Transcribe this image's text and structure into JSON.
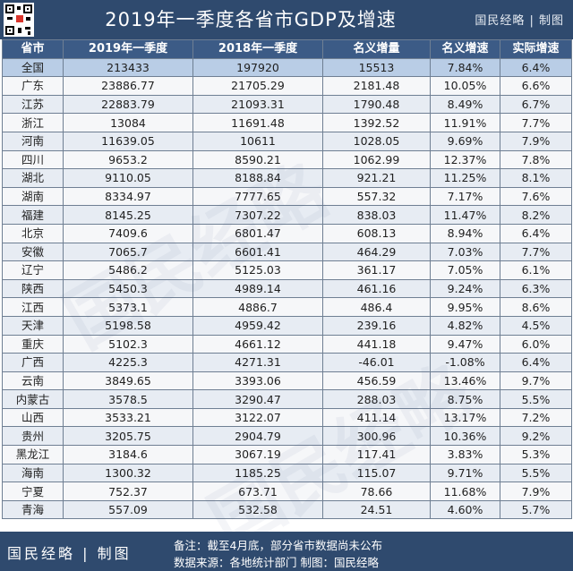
{
  "header": {
    "title": "2019年一季度各省市GDP及增速",
    "brand": "国民经略 | 制图"
  },
  "chart_data": {
    "type": "table",
    "title": "2019年一季度各省市GDP及增速",
    "columns": [
      "省市",
      "2019年一季度",
      "2018年一季度",
      "名义增量",
      "名义增速",
      "实际增速"
    ],
    "rows": [
      [
        "全国",
        "213433",
        "197920",
        "15513",
        "7.84%",
        "6.4%"
      ],
      [
        "广东",
        "23886.77",
        "21705.29",
        "2181.48",
        "10.05%",
        "6.6%"
      ],
      [
        "江苏",
        "22883.79",
        "21093.31",
        "1790.48",
        "8.49%",
        "6.7%"
      ],
      [
        "浙江",
        "13084",
        "11691.48",
        "1392.52",
        "11.91%",
        "7.7%"
      ],
      [
        "河南",
        "11639.05",
        "10611",
        "1028.05",
        "9.69%",
        "7.9%"
      ],
      [
        "四川",
        "9653.2",
        "8590.21",
        "1062.99",
        "12.37%",
        "7.8%"
      ],
      [
        "湖北",
        "9110.05",
        "8188.84",
        "921.21",
        "11.25%",
        "8.1%"
      ],
      [
        "湖南",
        "8334.97",
        "7777.65",
        "557.32",
        "7.17%",
        "7.6%"
      ],
      [
        "福建",
        "8145.25",
        "7307.22",
        "838.03",
        "11.47%",
        "8.2%"
      ],
      [
        "北京",
        "7409.6",
        "6801.47",
        "608.13",
        "8.94%",
        "6.4%"
      ],
      [
        "安徽",
        "7065.7",
        "6601.41",
        "464.29",
        "7.03%",
        "7.7%"
      ],
      [
        "辽宁",
        "5486.2",
        "5125.03",
        "361.17",
        "7.05%",
        "6.1%"
      ],
      [
        "陕西",
        "5450.3",
        "4989.14",
        "461.16",
        "9.24%",
        "6.3%"
      ],
      [
        "江西",
        "5373.1",
        "4886.7",
        "486.4",
        "9.95%",
        "8.6%"
      ],
      [
        "天津",
        "5198.58",
        "4959.42",
        "239.16",
        "4.82%",
        "4.5%"
      ],
      [
        "重庆",
        "5102.3",
        "4661.12",
        "441.18",
        "9.47%",
        "6.0%"
      ],
      [
        "广西",
        "4225.3",
        "4271.31",
        "-46.01",
        "-1.08%",
        "6.4%"
      ],
      [
        "云南",
        "3849.65",
        "3393.06",
        "456.59",
        "13.46%",
        "9.7%"
      ],
      [
        "内蒙古",
        "3578.5",
        "3290.47",
        "288.03",
        "8.75%",
        "5.5%"
      ],
      [
        "山西",
        "3533.21",
        "3122.07",
        "411.14",
        "13.17%",
        "7.2%"
      ],
      [
        "贵州",
        "3205.75",
        "2904.79",
        "300.96",
        "10.36%",
        "9.2%"
      ],
      [
        "黑龙江",
        "3184.6",
        "3067.19",
        "117.41",
        "3.83%",
        "5.3%"
      ],
      [
        "海南",
        "1300.32",
        "1185.25",
        "115.07",
        "9.71%",
        "5.5%"
      ],
      [
        "宁夏",
        "752.37",
        "673.71",
        "78.66",
        "11.68%",
        "7.9%"
      ],
      [
        "青海",
        "557.09",
        "532.58",
        "24.51",
        "4.60%",
        "5.7%"
      ]
    ]
  },
  "footer": {
    "brand": "国民经略 | 制图",
    "note": "备注：截至4月底，部分省市数据尚未公布",
    "source": "数据来源：各地统计部门  制图：国民经略"
  },
  "watermark": {
    "text": "国民经略"
  },
  "colors": {
    "header_bg": "#2f4a6e",
    "column_header_bg": "#3c5b86",
    "total_row_bg": "#b9cde6",
    "row_alt_bg": "#e7ecf3",
    "grid": "#6f7f93"
  }
}
